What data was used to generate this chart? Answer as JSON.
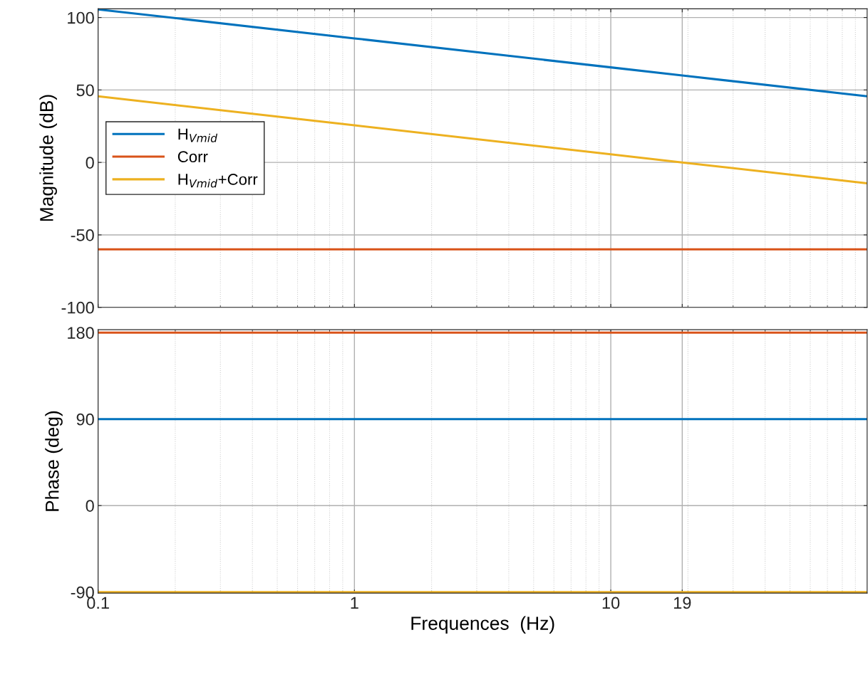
{
  "chart_data": [
    {
      "type": "line",
      "ylabel": "Magnitude (dB)",
      "log": "x",
      "xlim": [
        0.1,
        100
      ],
      "xticks": [
        0.1,
        1,
        10,
        19
      ],
      "ylim": [
        -100,
        106
      ],
      "yticks": [
        -100,
        -50,
        0,
        50,
        100
      ],
      "grid": true,
      "legend": "left",
      "tick_labels": "y",
      "series": [
        {
          "name": "H$_{Vmid}$",
          "color": "#0072bd",
          "x": [
            0.1,
            1,
            10,
            19,
            100
          ],
          "values": [
            105.6,
            85.6,
            65.6,
            60,
            45.6
          ]
        },
        {
          "name": "Corr",
          "color": "#d95319",
          "x": [
            0.1,
            100
          ],
          "values": [
            -60,
            -60
          ]
        },
        {
          "name": "H$_{Vmid}$+Corr",
          "color": "#edb120",
          "x": [
            0.1,
            1,
            10,
            19,
            100
          ],
          "values": [
            45.6,
            25.6,
            5.6,
            0,
            -14.4
          ]
        }
      ]
    },
    {
      "type": "line",
      "ylabel": "Phase (deg)",
      "xlabel": "Frequences  (Hz)",
      "log": "x",
      "xlim": [
        0.1,
        100
      ],
      "xticks": [
        0.1,
        1,
        10,
        19
      ],
      "ylim": [
        -91,
        183
      ],
      "yticks": [
        -90,
        0,
        90,
        180
      ],
      "grid": true,
      "series": [
        {
          "color": "#0072bd",
          "x": [
            0.1,
            100
          ],
          "values": [
            90,
            90
          ]
        },
        {
          "color": "#d95319",
          "x": [
            0.1,
            100
          ],
          "values": [
            180,
            180
          ]
        },
        {
          "color": "#edb120",
          "x": [
            0.1,
            100
          ],
          "values": [
            -90,
            -90
          ]
        }
      ]
    }
  ]
}
